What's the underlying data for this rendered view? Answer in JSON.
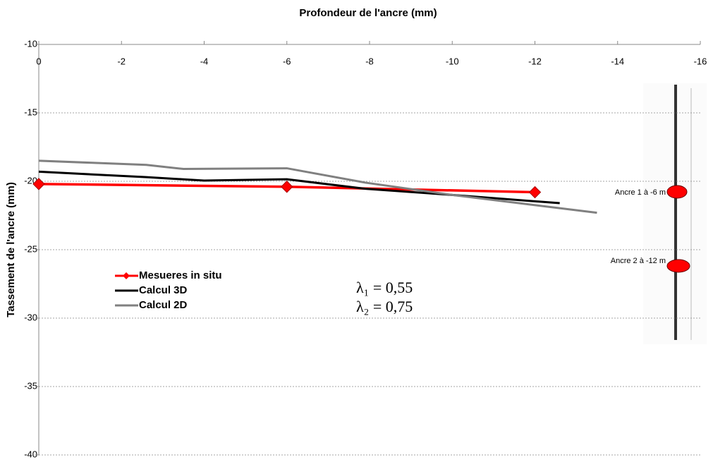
{
  "chart_data": {
    "type": "line",
    "title": "Profondeur de l'ancre (mm)",
    "y_label": "Tassement de l'ancre (mm)",
    "xlim": [
      0,
      -16
    ],
    "xticks": [
      0,
      -2,
      -4,
      -6,
      -8,
      -10,
      -12,
      -14,
      -16
    ],
    "ylim": [
      -40,
      -10
    ],
    "yticks": [
      -10,
      -15,
      -20,
      -25,
      -30,
      -35,
      -40
    ],
    "grid": true,
    "legend": "left",
    "series": [
      {
        "name": "Mesueres in situ",
        "color": "#ff0000",
        "marker": "diamond",
        "x": [
          0,
          -6,
          -12
        ],
        "values": [
          -20.2,
          -20.4,
          -20.8
        ]
      },
      {
        "name": "Calcul 3D",
        "color": "#000000",
        "x": [
          0,
          -2.6,
          -4,
          -6,
          -7.9,
          -10,
          -12.6
        ],
        "values": [
          -19.3,
          -19.7,
          -19.95,
          -19.85,
          -20.55,
          -21.0,
          -21.6
        ]
      },
      {
        "name": "Calcul 2D",
        "color": "#808080",
        "x": [
          0,
          -2.6,
          -3.5,
          -6,
          -7.9,
          -10,
          -13.5
        ],
        "values": [
          -18.5,
          -18.8,
          -19.1,
          -19.05,
          -20.1,
          -21.0,
          -22.3
        ]
      }
    ],
    "annotations": [
      "λ₁ = 0,55",
      "λ₂ = 0,75",
      "Ancre 1 à -6 m",
      "Ancre 2 à -12 m"
    ]
  }
}
